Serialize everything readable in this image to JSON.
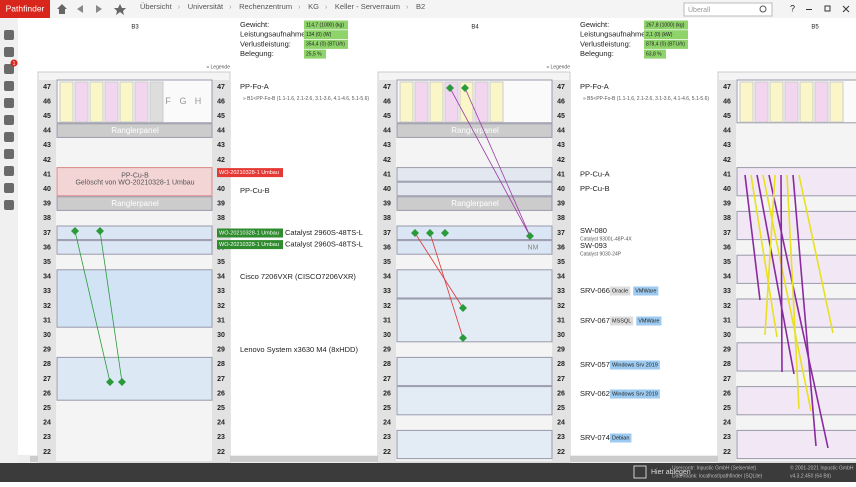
{
  "app": {
    "name": "Pathfinder",
    "badge": "1"
  },
  "breadcrumb": [
    "Übersicht",
    "Universität",
    "Rechenzentrum",
    "KG",
    "Keller - Serverraum",
    "B2"
  ],
  "search": "Überall",
  "units": [
    47,
    46,
    45,
    44,
    43,
    42,
    41,
    40,
    39,
    38,
    37,
    36,
    35,
    34,
    33,
    32,
    31,
    30,
    29,
    28,
    27,
    26,
    25,
    24,
    23,
    22
  ],
  "legend": "» Legende",
  "stat_labels": [
    "Gewicht:",
    "Leistungsaufnahme:",
    "Verlustleistung:",
    "Belegung:"
  ],
  "stats": [
    [
      "114,7 (1000) (kg)",
      "134 (0) (W)",
      "354,4 (0) (BTU/h)",
      "25,5 %"
    ],
    [
      "267,8 (1000) (kg)",
      "2,1 (0) (kW)",
      "878,4 (0) (BTU/h)",
      "63,8 %"
    ]
  ],
  "racks": [
    {
      "name": "B3",
      "inside": [
        "F",
        "G",
        "H",
        "Ranglerpanel",
        "PP-Cu-B",
        "Gelöscht von WO-20210328-1 Umbau",
        "Ranglerpanel"
      ]
    },
    {
      "name": "B4",
      "inside": [
        "Ranglerpanel",
        "Ranglerpanel",
        "NM"
      ]
    },
    {
      "name": "B5",
      "inside": []
    }
  ],
  "labels_b3": {
    "pp_fo_a": "PP-Fo-A",
    "pp_fo_b": "» B1<PP-Fo-B (1.1-1.6, 2.1-2.6, 3.1-3.6, 4.1-4.6, 5.1-5.6)",
    "wo_red": "WO-20210328-1 Umbau",
    "pp_cu_b": "PP-Cu-B",
    "wo_green_1": "WO-20210328-1 Umbau",
    "switch_1": "Catalyst 2960S-48TS-L",
    "wo_green_2": "WO-20210328-1 Umbau",
    "switch_2": "Catalyst 2960S-48TS-L",
    "router": "Cisco 7206VXR (CISCO7206VXR)",
    "server": "Lenovo System x3630 M4 (8xHDD)"
  },
  "labels_b4": {
    "pp_fo_a": "PP-Fo-A",
    "pp_fo_b": "» B5<PP-Fo-B (1.1-1.6, 2.1-2.6, 3.1-3.6, 4.1-4.6, 5.1-5.6)",
    "pp_cu_a": "PP-Cu-A",
    "pp_cu_b": "PP-Cu-B",
    "sw_080": "SW-080",
    "sw_080_model": "Catalyst 9300L-48P-4X",
    "sw_093": "SW-093",
    "sw_093_model": "Catalyst 9030-24P",
    "servers": [
      {
        "name": "SRV-066",
        "tags": [
          "Oracle",
          "VMWare"
        ]
      },
      {
        "name": "SRV-067",
        "tags": [
          "MSSQL",
          "VMWare"
        ]
      },
      {
        "name": "SRV-057",
        "tags": [
          "Windows Srv 2019"
        ]
      },
      {
        "name": "SRV-062",
        "tags": [
          "Windows Srv 2019"
        ]
      },
      {
        "name": "SRV-074",
        "tags": [
          "Debian"
        ]
      }
    ]
  },
  "footer": {
    "drop": "Hier ablegen",
    "user": "Usercontr: Inpustic GmbH (Selsemlet)",
    "db": "Datenbank: localhost\\pathfinder (SQLite)",
    "copyright": "© 2001-2021 Inpustic GmbH",
    "version": "v4.3.2.450 (64 Bit)"
  }
}
